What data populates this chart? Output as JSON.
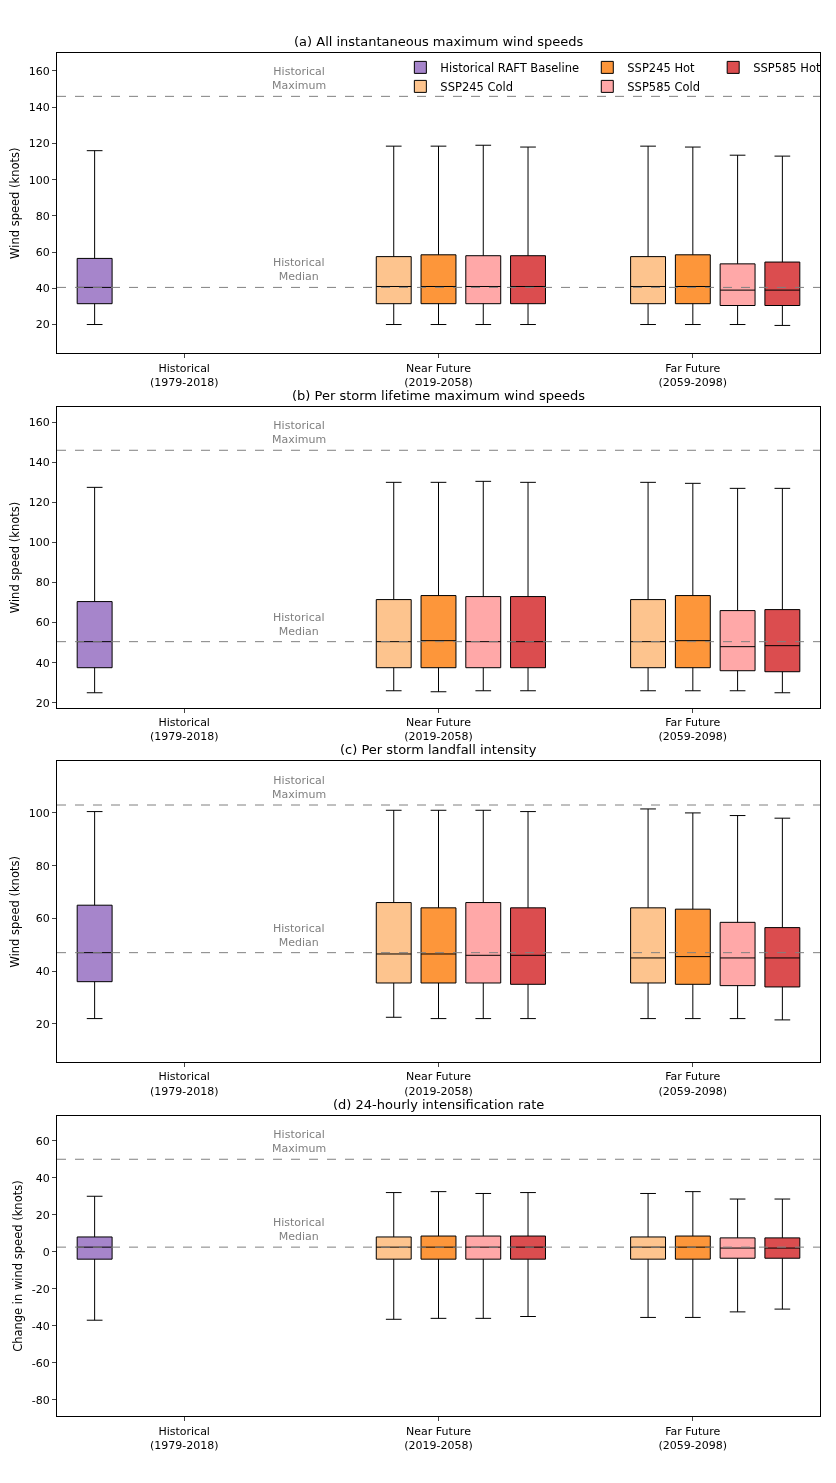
{
  "chart_data": [
    {
      "type": "box",
      "title": "(a) All instantaneous maximum wind speeds",
      "ylabel": "Wind speed (knots)",
      "categories": [
        "Historical\n(1979-2018)",
        "Near Future\n(2019-2058)",
        "Far Future\n(2059-2098)"
      ],
      "ylim": [
        4,
        170
      ],
      "yticks": [
        20,
        40,
        60,
        80,
        100,
        120,
        140,
        160
      ],
      "legend": "top right",
      "ref_lines": [
        {
          "axis": "y",
          "value": 146,
          "label": "Historical\nMaximum",
          "color": "#808080",
          "line_style": "dashed"
        },
        {
          "axis": "y",
          "value": 40.5,
          "label": "Historical\nMedian",
          "color": "#808080",
          "line_style": "dashed"
        }
      ],
      "series": [
        {
          "name": "Historical RAFT Baseline",
          "color": "#a685cb",
          "boxes": [
            {
              "low": 20,
              "q1": 31.5,
              "median": 40.5,
              "q3": 56.5,
              "high": 116
            },
            null,
            null
          ]
        },
        {
          "name": "SSP245 Cold",
          "color": "#fdc48e",
          "boxes": [
            null,
            {
              "low": 20,
              "q1": 31.5,
              "median": 41,
              "q3": 57.5,
              "high": 118.5
            },
            {
              "low": 20,
              "q1": 31.5,
              "median": 41,
              "q3": 57.5,
              "high": 118.5
            }
          ]
        },
        {
          "name": "SSP245 Hot",
          "color": "#fd963a",
          "boxes": [
            null,
            {
              "low": 20,
              "q1": 31.5,
              "median": 41,
              "q3": 58.5,
              "high": 118.5
            },
            {
              "low": 20,
              "q1": 31.5,
              "median": 41,
              "q3": 58.5,
              "high": 118
            }
          ]
        },
        {
          "name": "SSP585 Cold",
          "color": "#ffa8a8",
          "boxes": [
            null,
            {
              "low": 20,
              "q1": 31.5,
              "median": 41,
              "q3": 58,
              "high": 119
            },
            {
              "low": 20,
              "q1": 30.5,
              "median": 39,
              "q3": 53.5,
              "high": 113.5
            }
          ]
        },
        {
          "name": "SSP585 Hot",
          "color": "#db4d4f",
          "boxes": [
            null,
            {
              "low": 20,
              "q1": 31.5,
              "median": 41,
              "q3": 58,
              "high": 118
            },
            {
              "low": 19.5,
              "q1": 30.5,
              "median": 39,
              "q3": 54.5,
              "high": 113
            }
          ]
        }
      ]
    },
    {
      "type": "box",
      "title": "(b) Per storm lifetime maximum wind speeds",
      "ylabel": "Wind speed (knots)",
      "categories": [
        "Historical\n(1979-2018)",
        "Near Future\n(2019-2058)",
        "Far Future\n(2059-2098)"
      ],
      "ylim": [
        17.5,
        167.5
      ],
      "yticks": [
        20,
        40,
        60,
        80,
        100,
        120,
        140,
        160
      ],
      "ref_lines": [
        {
          "axis": "y",
          "value": 146,
          "label": "Historical\nMaximum",
          "color": "#808080",
          "line_style": "dashed"
        },
        {
          "axis": "y",
          "value": 50.5,
          "label": "Historical\nMedian",
          "color": "#808080",
          "line_style": "dashed"
        }
      ],
      "series": [
        {
          "color": "#a685cb",
          "boxes": [
            {
              "low": 25,
              "q1": 37.5,
              "median": 50.5,
              "q3": 70.5,
              "high": 127.5
            },
            null,
            null
          ]
        },
        {
          "color": "#fdc48e",
          "boxes": [
            null,
            {
              "low": 26,
              "q1": 37.5,
              "median": 50.5,
              "q3": 71.5,
              "high": 130
            },
            {
              "low": 26,
              "q1": 37.5,
              "median": 50.5,
              "q3": 71.5,
              "high": 130
            }
          ]
        },
        {
          "color": "#fd963a",
          "boxes": [
            null,
            {
              "low": 25.5,
              "q1": 37.5,
              "median": 51,
              "q3": 73.5,
              "high": 130
            },
            {
              "low": 26,
              "q1": 37.5,
              "median": 51,
              "q3": 73.5,
              "high": 129.5
            }
          ]
        },
        {
          "color": "#ffa8a8",
          "boxes": [
            null,
            {
              "low": 26,
              "q1": 37.5,
              "median": 50.5,
              "q3": 73,
              "high": 130.5
            },
            {
              "low": 26,
              "q1": 36,
              "median": 48,
              "q3": 66,
              "high": 127
            }
          ]
        },
        {
          "color": "#db4d4f",
          "boxes": [
            null,
            {
              "low": 26,
              "q1": 37.5,
              "median": 50.5,
              "q3": 73,
              "high": 130
            },
            {
              "low": 25,
              "q1": 35.5,
              "median": 48.5,
              "q3": 66.5,
              "high": 127
            }
          ]
        }
      ]
    },
    {
      "type": "box",
      "title": "(c) Per storm landfall intensity",
      "ylabel": "Wind speed (knots)",
      "categories": [
        "Historical\n(1979-2018)",
        "Near Future\n(2019-2058)",
        "Far Future\n(2059-2098)"
      ],
      "ylim": [
        5.5,
        119.5
      ],
      "yticks": [
        20,
        40,
        60,
        80,
        100
      ],
      "ref_lines": [
        {
          "axis": "y",
          "value": 103,
          "label": "Historical\nMaximum",
          "color": "#808080",
          "line_style": "dashed"
        },
        {
          "axis": "y",
          "value": 47,
          "label": "Historical\nMedian",
          "color": "#808080",
          "line_style": "dashed"
        }
      ],
      "series": [
        {
          "color": "#a685cb",
          "boxes": [
            {
              "low": 22,
              "q1": 36,
              "median": 47,
              "q3": 65,
              "high": 100.5
            },
            null,
            null
          ]
        },
        {
          "color": "#fdc48e",
          "boxes": [
            null,
            {
              "low": 22.5,
              "q1": 35.5,
              "median": 46.5,
              "q3": 66,
              "high": 101
            },
            {
              "low": 22,
              "q1": 35.5,
              "median": 45,
              "q3": 64,
              "high": 101.5
            }
          ]
        },
        {
          "color": "#fd963a",
          "boxes": [
            null,
            {
              "low": 22,
              "q1": 35.5,
              "median": 46.5,
              "q3": 64,
              "high": 101
            },
            {
              "low": 22,
              "q1": 35,
              "median": 45.5,
              "q3": 63.5,
              "high": 100
            }
          ]
        },
        {
          "color": "#ffa8a8",
          "boxes": [
            null,
            {
              "low": 22,
              "q1": 35.5,
              "median": 46,
              "q3": 66,
              "high": 101
            },
            {
              "low": 22,
              "q1": 34.5,
              "median": 45,
              "q3": 58.5,
              "high": 99
            }
          ]
        },
        {
          "color": "#db4d4f",
          "boxes": [
            null,
            {
              "low": 22,
              "q1": 35,
              "median": 46,
              "q3": 64,
              "high": 100.5
            },
            {
              "low": 21.5,
              "q1": 34,
              "median": 45,
              "q3": 56.5,
              "high": 98
            }
          ]
        }
      ]
    },
    {
      "type": "box",
      "title": "(d) 24-hourly intensification rate",
      "ylabel": "Change in wind speed (knots)",
      "categories": [
        "Historical\n(1979-2018)",
        "Near Future\n(2019-2058)",
        "Far Future\n(2059-2098)"
      ],
      "ylim": [
        -89,
        73.5
      ],
      "yticks": [
        -80,
        -60,
        -40,
        -20,
        0,
        20,
        40,
        60
      ],
      "ref_lines": [
        {
          "axis": "y",
          "value": 50,
          "label": "Historical\nMaximum",
          "color": "#808080",
          "line_style": "dashed"
        },
        {
          "axis": "y",
          "value": 2.5,
          "label": "Historical\nMedian",
          "color": "#808080",
          "line_style": "dashed"
        }
      ],
      "series": [
        {
          "color": "#a685cb",
          "boxes": [
            {
              "low": -37,
              "q1": -4,
              "median": 2.5,
              "q3": 8,
              "high": 30
            },
            null,
            null
          ]
        },
        {
          "color": "#fdc48e",
          "boxes": [
            null,
            {
              "low": -36.5,
              "q1": -4,
              "median": 2.5,
              "q3": 8,
              "high": 32
            },
            {
              "low": -35.5,
              "q1": -4,
              "median": 2.5,
              "q3": 8,
              "high": 31.5
            }
          ]
        },
        {
          "color": "#fd963a",
          "boxes": [
            null,
            {
              "low": -36,
              "q1": -4,
              "median": 2.5,
              "q3": 8.5,
              "high": 32.5
            },
            {
              "low": -35.5,
              "q1": -4,
              "median": 2.5,
              "q3": 8.5,
              "high": 32.5
            }
          ]
        },
        {
          "color": "#ffa8a8",
          "boxes": [
            null,
            {
              "low": -36,
              "q1": -4,
              "median": 2.5,
              "q3": 8.5,
              "high": 31.5
            },
            {
              "low": -32.5,
              "q1": -3.5,
              "median": 2,
              "q3": 7.5,
              "high": 28.5
            }
          ]
        },
        {
          "color": "#db4d4f",
          "boxes": [
            null,
            {
              "low": -35,
              "q1": -4,
              "median": 2.5,
              "q3": 8.5,
              "high": 32
            },
            {
              "low": -31,
              "q1": -3.5,
              "median": 2,
              "q3": 7.5,
              "high": 28.5
            }
          ]
        }
      ]
    }
  ]
}
